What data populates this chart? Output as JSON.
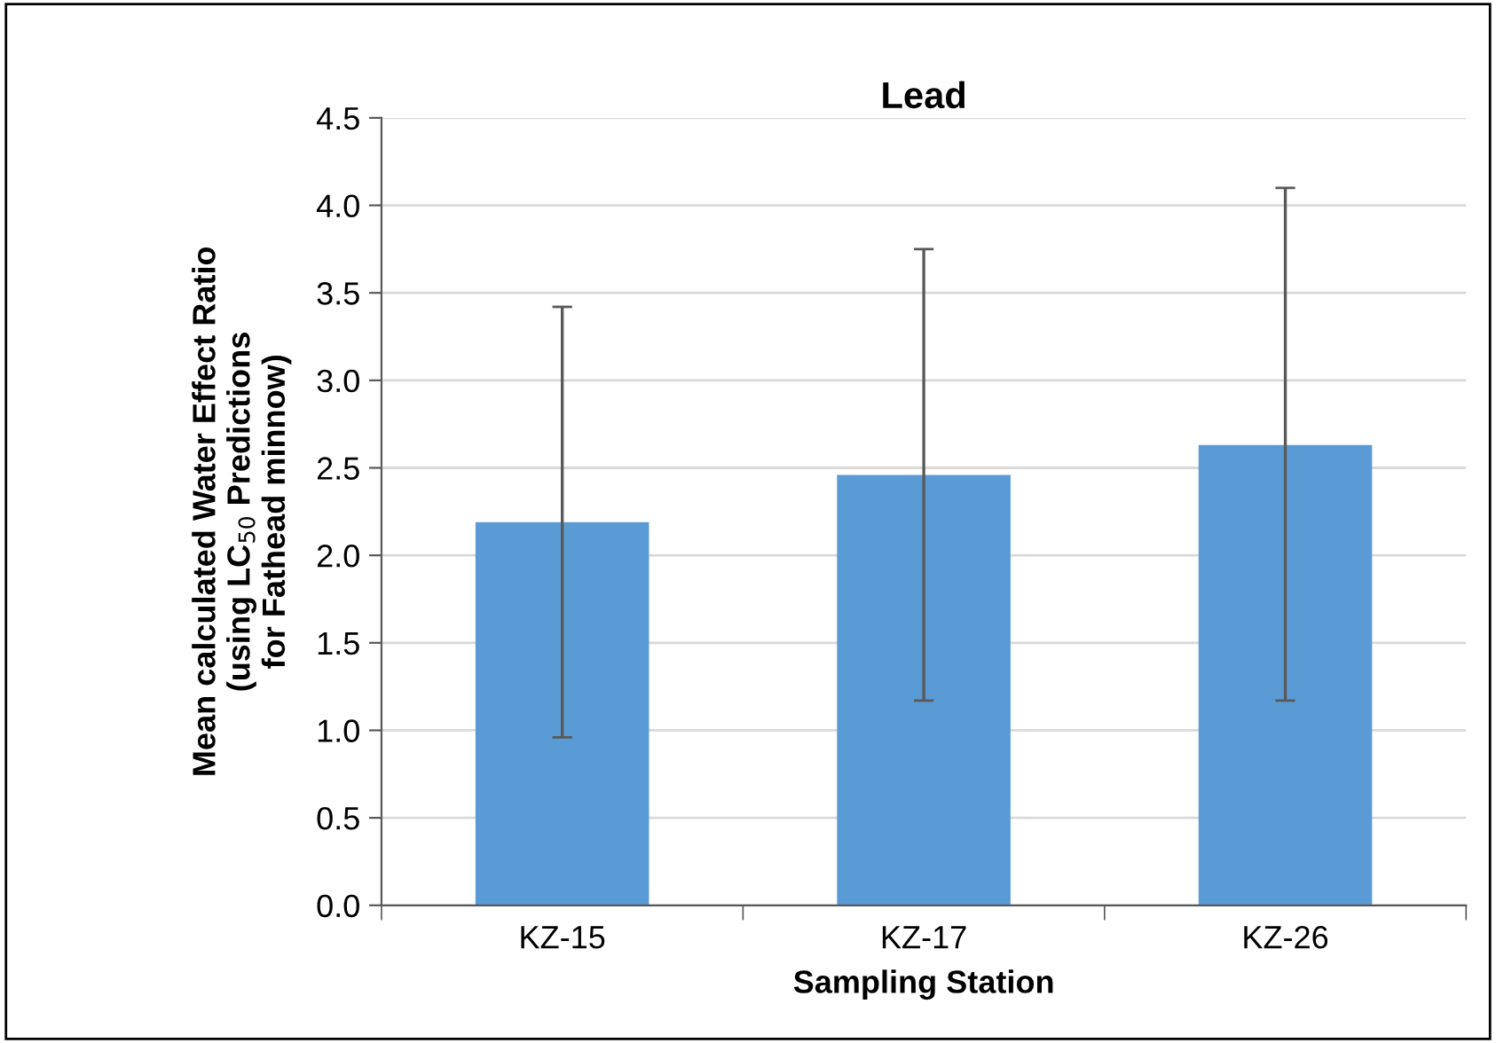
{
  "chart_data": {
    "type": "bar",
    "title": "Lead",
    "xlabel": "Sampling Station",
    "ylabel": "Mean calculated Water Effect Ratio\n(using LC$_{50}$ Predictions\nfor Fathead minnow)",
    "categories": [
      "KZ-15",
      "KZ-17",
      "KZ-26"
    ],
    "values": [
      2.19,
      2.46,
      2.63
    ],
    "errors": [
      [
        0.96,
        3.42
      ],
      [
        1.17,
        3.75
      ],
      [
        1.17,
        4.1
      ]
    ],
    "color": "#5b9bd5",
    "ylim": [
      0,
      4.5
    ],
    "yticks": [
      {
        "value": 0,
        "label": "0.0"
      },
      {
        "value": 0.5,
        "label": "0.5"
      },
      {
        "value": 1,
        "label": "1.0"
      },
      {
        "value": 1.5,
        "label": "1.5"
      },
      {
        "value": 2,
        "label": "2.0"
      },
      {
        "value": 2.5,
        "label": "2.5"
      },
      {
        "value": 3,
        "label": "3.0"
      },
      {
        "value": 3.5,
        "label": "3.5"
      },
      {
        "value": 4,
        "label": "4.0"
      },
      {
        "value": 4.5,
        "label": "4.5"
      }
    ],
    "grid": "y",
    "legend": false
  }
}
